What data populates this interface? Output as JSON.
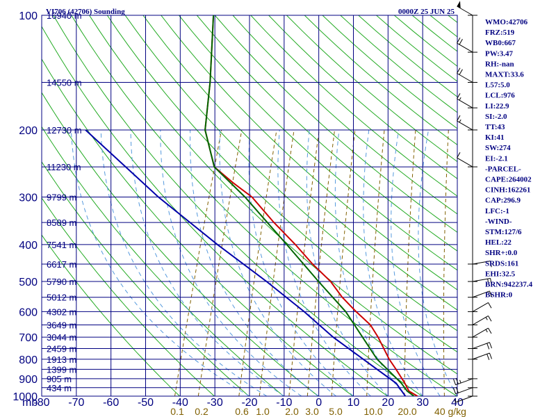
{
  "title_left": "VI706 (42706) Sounding",
  "title_right": "0000Z 25 JUN 25",
  "chart_data": {
    "type": "line",
    "subtype": "skew-T log-p sounding",
    "x_axis": {
      "label": "mb",
      "ticks": [
        -80,
        -70,
        -60,
        -50,
        -40,
        -30,
        -20,
        -10,
        0,
        10,
        20,
        30,
        40
      ],
      "range": [
        -80,
        40
      ],
      "unit": "°C"
    },
    "y_axis": {
      "scale": "log",
      "range": [
        1000,
        100
      ],
      "ticks": [
        100,
        200,
        300,
        400,
        500,
        600,
        700,
        800,
        900,
        1000
      ]
    },
    "height_labels": [
      {
        "p": 100,
        "text": "16940 m"
      },
      {
        "p": 150,
        "text": "14550 m"
      },
      {
        "p": 200,
        "text": "12730 m"
      },
      {
        "p": 250,
        "text": "11230 m"
      },
      {
        "p": 300,
        "text": "9799 m"
      },
      {
        "p": 350,
        "text": "8589 m"
      },
      {
        "p": 400,
        "text": "7541 m"
      },
      {
        "p": 450,
        "text": "6617 m"
      },
      {
        "p": 500,
        "text": "5790 m"
      },
      {
        "p": 550,
        "text": "5012 m"
      },
      {
        "p": 600,
        "text": "4302 m"
      },
      {
        "p": 650,
        "text": "3649 m"
      },
      {
        "p": 700,
        "text": "3044 m"
      },
      {
        "p": 750,
        "text": "2459 m"
      },
      {
        "p": 800,
        "text": "1913 m"
      },
      {
        "p": 850,
        "text": "1399 m"
      },
      {
        "p": 900,
        "text": "905 m"
      },
      {
        "p": 950,
        "text": "434 m"
      }
    ],
    "mixing_ratio_labels": [
      "0.1",
      "0.2",
      "0.6",
      "1.0",
      "2.0",
      "3.0",
      "5.0",
      "10.0",
      "20.0",
      "40 g/kg"
    ],
    "series": [
      {
        "name": "",
        "color": "#cc0000",
        "points": [
          [
            1000,
            28.5
          ],
          [
            970,
            25.5
          ],
          [
            925,
            23.5
          ],
          [
            850,
            19.5
          ],
          [
            800,
            16.5
          ],
          [
            700,
            11.0
          ],
          [
            650,
            7.5
          ],
          [
            600,
            2.0
          ],
          [
            550,
            -3.5
          ],
          [
            500,
            -8.5
          ],
          [
            450,
            -15.5
          ],
          [
            400,
            -22.5
          ],
          [
            350,
            -31.0
          ],
          [
            300,
            -40.0
          ],
          [
            275,
            -47.0
          ],
          [
            250,
            -54.0
          ],
          [
            200,
            -60.5
          ],
          [
            150,
            -64.0
          ],
          [
            100,
            -70.0
          ]
        ]
      },
      {
        "name": "",
        "color": "#006600",
        "points": [
          [
            1000,
            27.5
          ],
          [
            970,
            25.0
          ],
          [
            925,
            22.5
          ],
          [
            850,
            17.0
          ],
          [
            800,
            13.0
          ],
          [
            700,
            6.5
          ],
          [
            600,
            -1.0
          ],
          [
            500,
            -12.0
          ],
          [
            400,
            -25.0
          ],
          [
            300,
            -42.0
          ],
          [
            250,
            -54.0
          ],
          [
            200,
            -60.5
          ],
          [
            150,
            -64.0
          ],
          [
            100,
            -70.0
          ]
        ]
      },
      {
        "name": "",
        "color": "#0000aa",
        "points": [
          [
            1000,
            25.0
          ],
          [
            925,
            21.0
          ],
          [
            850,
            14.0
          ],
          [
            700,
            -2.0
          ],
          [
            600,
            -13.0
          ],
          [
            500,
            -27.0
          ],
          [
            400,
            -45.0
          ],
          [
            300,
            -67.0
          ],
          [
            200,
            -95.0
          ]
        ]
      }
    ],
    "wind_barbs": [
      {
        "p": 100,
        "speed_kt": 50,
        "dir_deg": 300
      },
      {
        "p": 125,
        "speed_kt": 20,
        "dir_deg": 300
      },
      {
        "p": 150,
        "speed_kt": 20,
        "dir_deg": 300
      },
      {
        "p": 175,
        "speed_kt": 15,
        "dir_deg": 300
      },
      {
        "p": 200,
        "speed_kt": 15,
        "dir_deg": 300
      },
      {
        "p": 250,
        "speed_kt": 10,
        "dir_deg": 300
      },
      {
        "p": 450,
        "speed_kt": 10,
        "dir_deg": 80
      },
      {
        "p": 500,
        "speed_kt": 15,
        "dir_deg": 80
      },
      {
        "p": 550,
        "speed_kt": 10,
        "dir_deg": 70
      },
      {
        "p": 600,
        "speed_kt": 10,
        "dir_deg": 60
      },
      {
        "p": 650,
        "speed_kt": 15,
        "dir_deg": 60
      },
      {
        "p": 700,
        "speed_kt": 15,
        "dir_deg": 60
      },
      {
        "p": 750,
        "speed_kt": 20,
        "dir_deg": 70
      },
      {
        "p": 800,
        "speed_kt": 20,
        "dir_deg": 70
      },
      {
        "p": 900,
        "speed_kt": 25,
        "dir_deg": 250
      },
      {
        "p": 950,
        "speed_kt": 20,
        "dir_deg": 250
      },
      {
        "p": 1000,
        "speed_kt": 5,
        "dir_deg": 250
      }
    ],
    "grid": true
  },
  "indices": [
    "WMO:42706",
    "FRZ:519",
    "WB0:667",
    "PW:3.47",
    "RH:-nan",
    "MAXT:33.6",
    "L57:5.0",
    "LCL:976",
    "LI:22.9",
    "SI:-2.0",
    "TT:43",
    "KI:41",
    "SW:274",
    "EI:-2.1",
    "-PARCEL-",
    "CAPE:264002",
    "CINH:162261",
    "CAP:296.9",
    "LFC:-1",
    "-WIND-",
    "STM:127/6",
    "HEL:22",
    "SHR+:0.0",
    "SRDS:161",
    "EHI:32.5",
    "BRN:942237.4",
    "BSHR:0"
  ]
}
